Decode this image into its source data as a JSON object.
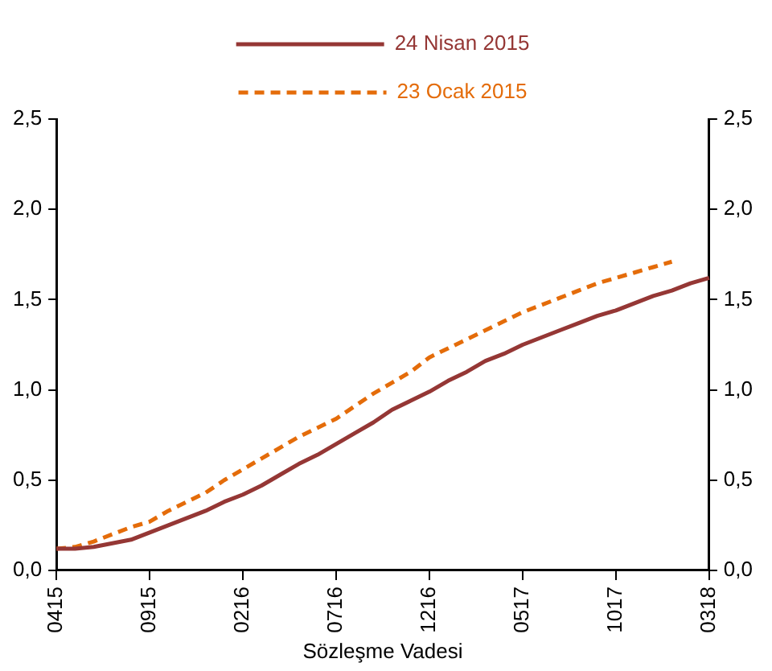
{
  "chart_data": {
    "type": "line",
    "xlabel": "Sözleşme Vadesi",
    "categories": [
      "0415",
      null,
      null,
      null,
      null,
      "0915",
      null,
      null,
      null,
      null,
      "0216",
      null,
      null,
      null,
      null,
      "0716",
      null,
      null,
      null,
      null,
      "1216",
      null,
      null,
      null,
      null,
      "0517",
      null,
      null,
      null,
      null,
      "1017",
      null,
      null,
      null,
      null,
      "0318"
    ],
    "series": [
      {
        "name": "24 Nisan 2015",
        "color": "#953735",
        "line_style": "solid",
        "values": [
          0.12,
          0.12,
          0.13,
          0.15,
          0.17,
          0.21,
          0.25,
          0.29,
          0.33,
          0.38,
          0.42,
          0.47,
          0.53,
          0.59,
          0.64,
          0.7,
          0.76,
          0.82,
          0.89,
          0.94,
          0.99,
          1.05,
          1.1,
          1.16,
          1.2,
          1.25,
          1.29,
          1.33,
          1.37,
          1.41,
          1.44,
          1.48,
          1.52,
          1.55,
          1.59,
          1.62
        ]
      },
      {
        "name": "23 Ocak 2015",
        "color": "#e46c0a",
        "line_style": "dashed",
        "values": [
          0.12,
          0.13,
          0.16,
          0.2,
          0.24,
          0.27,
          0.33,
          0.38,
          0.43,
          0.5,
          0.56,
          0.62,
          0.68,
          0.74,
          0.79,
          0.84,
          0.91,
          0.98,
          1.04,
          1.1,
          1.18,
          1.23,
          1.28,
          1.33,
          1.38,
          1.43,
          1.47,
          1.51,
          1.55,
          1.59,
          1.62,
          1.65,
          1.68,
          1.71,
          null,
          null
        ]
      }
    ],
    "ylim": [
      0,
      2.5
    ],
    "yticks": [
      {
        "value": 0,
        "label": "0,0"
      },
      {
        "value": 0.5,
        "label": "0,5"
      },
      {
        "value": 1,
        "label": "1,0"
      },
      {
        "value": 1.5,
        "label": "1,5"
      },
      {
        "value": 2,
        "label": "2,0"
      },
      {
        "value": 2.5,
        "label": "2,5"
      }
    ],
    "y2lim": [
      0,
      2.5
    ],
    "y2ticks": [
      {
        "value": 0,
        "label": "0,0"
      },
      {
        "value": 0.5,
        "label": "0,5"
      },
      {
        "value": 1,
        "label": "1,0"
      },
      {
        "value": 1.5,
        "label": "1,5"
      },
      {
        "value": 2,
        "label": "2,0"
      },
      {
        "value": 2.5,
        "label": "2,5"
      }
    ],
    "grid": false,
    "legend": "top",
    "marker": "none"
  }
}
